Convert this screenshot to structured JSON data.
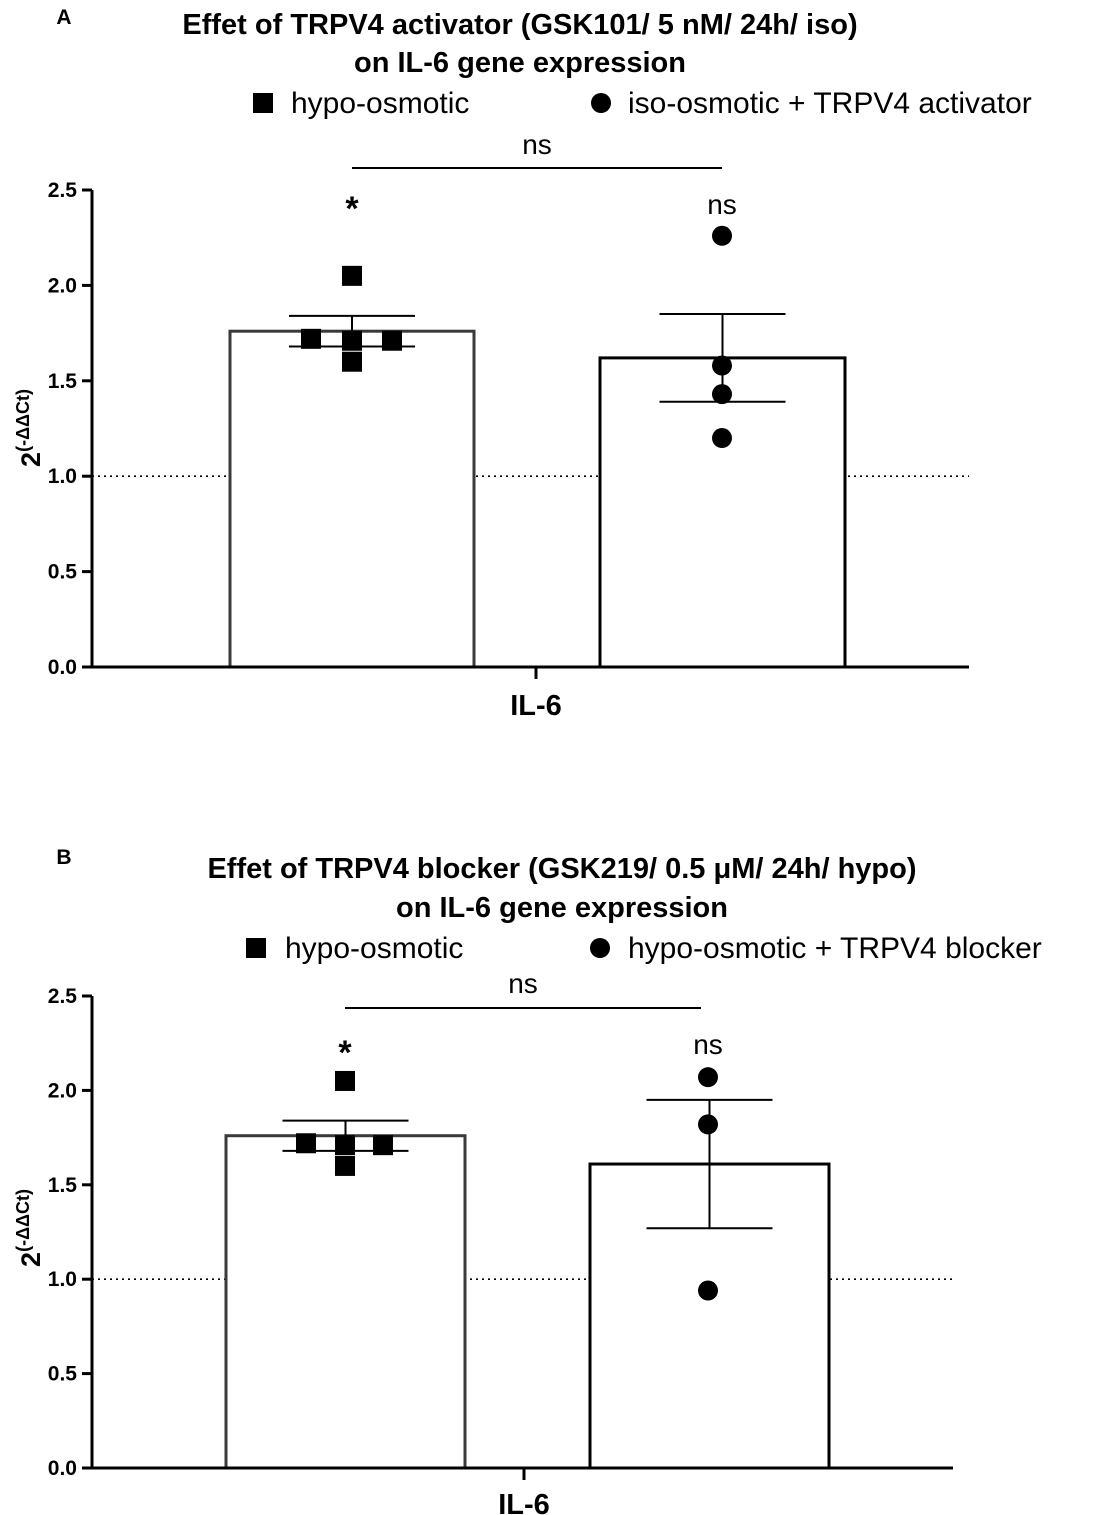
{
  "chart_data": [
    {
      "type": "bar",
      "panel_label": "A",
      "title_line1": "Effet of TRPV4 activator (GSK101/ 5 nM/ 24h/ iso)",
      "title_line2": "on IL-6 gene expression",
      "xlabel": "IL-6",
      "ylabel_base": "2",
      "ylabel_exp": "(-ΔΔCt)",
      "ylim": [
        0,
        2.5
      ],
      "yticks": [
        "0.0",
        "0.5",
        "1.0",
        "1.5",
        "2.0",
        "2.5"
      ],
      "reference_line": 1.0,
      "legend_placement": "top",
      "comparison_label": "ns",
      "series": [
        {
          "name": "hypo-osmotic",
          "marker": "square",
          "mean": 1.76,
          "sem_low": 1.68,
          "sem_high": 1.84,
          "points": [
            1.72,
            1.71,
            1.71,
            1.6,
            2.05
          ],
          "significance": "*"
        },
        {
          "name": "iso-osmotic + TRPV4 activator",
          "marker": "circle",
          "mean": 1.62,
          "sem_low": 1.39,
          "sem_high": 1.85,
          "points": [
            2.26,
            1.58,
            1.43,
            1.2
          ],
          "significance": "ns"
        }
      ]
    },
    {
      "type": "bar",
      "panel_label": "B",
      "title_line1": "Effet of TRPV4 blocker (GSK219/ 0.5 μM/ 24h/ hypo)",
      "title_line2": "on IL-6 gene expression",
      "xlabel": "IL-6",
      "ylabel_base": "2",
      "ylabel_exp": "(-ΔΔCt)",
      "ylim": [
        0,
        2.5
      ],
      "yticks": [
        "0.0",
        "0.5",
        "1.0",
        "1.5",
        "2.0",
        "2.5"
      ],
      "reference_line": 1.0,
      "legend_placement": "top",
      "comparison_label": "ns",
      "series": [
        {
          "name": "hypo-osmotic",
          "marker": "square",
          "mean": 1.76,
          "sem_low": 1.68,
          "sem_high": 1.84,
          "points": [
            1.72,
            1.71,
            1.71,
            1.6,
            2.05
          ],
          "significance": "*"
        },
        {
          "name": "hypo-osmotic + TRPV4 blocker",
          "marker": "circle",
          "mean": 1.61,
          "sem_low": 1.27,
          "sem_high": 1.95,
          "points": [
            2.07,
            1.82,
            0.94
          ],
          "significance": "ns"
        }
      ]
    }
  ]
}
